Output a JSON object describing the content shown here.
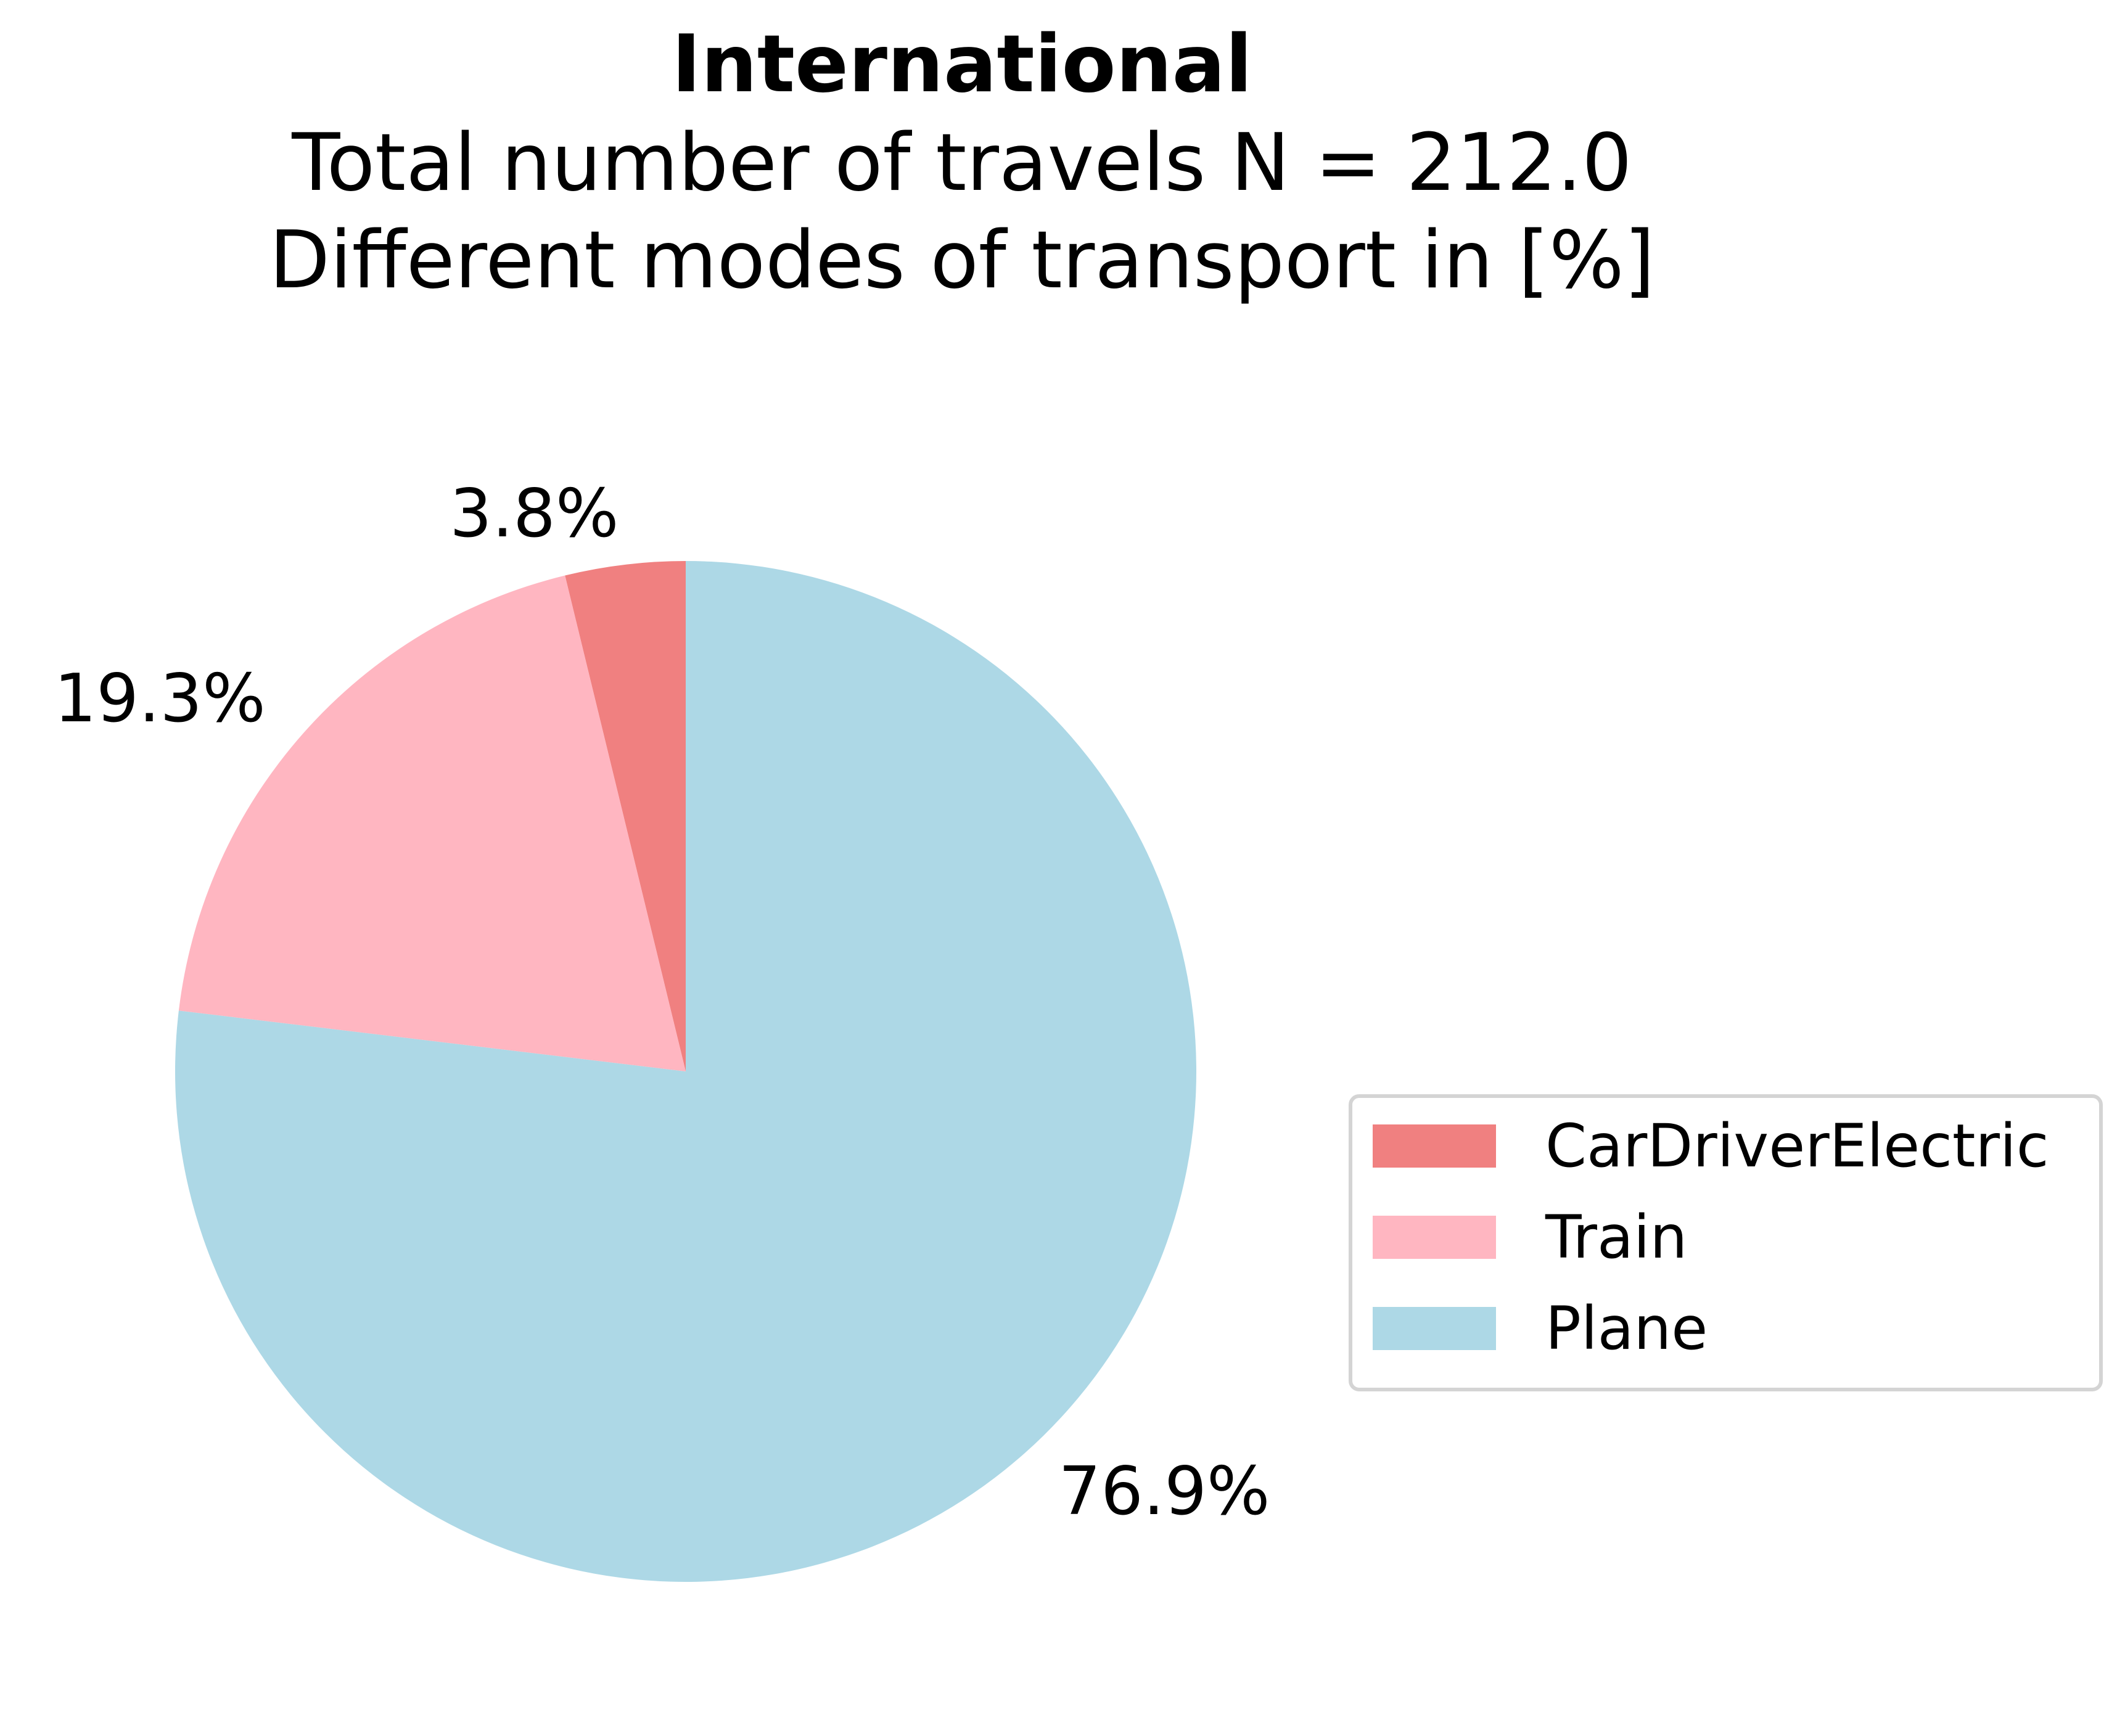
{
  "chart_data": {
    "type": "pie",
    "title": "International",
    "subtitle_lines": [
      "Total number of travels N = 212.0",
      "Different modes of transport in [%]"
    ],
    "slices": [
      {
        "label": "CarDriverElectric",
        "value": 3.8,
        "value_label": "3.8%",
        "color": "#F08080"
      },
      {
        "label": "Train",
        "value": 19.3,
        "value_label": "19.3%",
        "color": "#FFB6C1"
      },
      {
        "label": "Plane",
        "value": 76.9,
        "value_label": "76.9%",
        "color": "#ADD8E6"
      }
    ],
    "start_angle_deg": 90,
    "direction": "counterclockwise",
    "legend_position": "center-right"
  }
}
